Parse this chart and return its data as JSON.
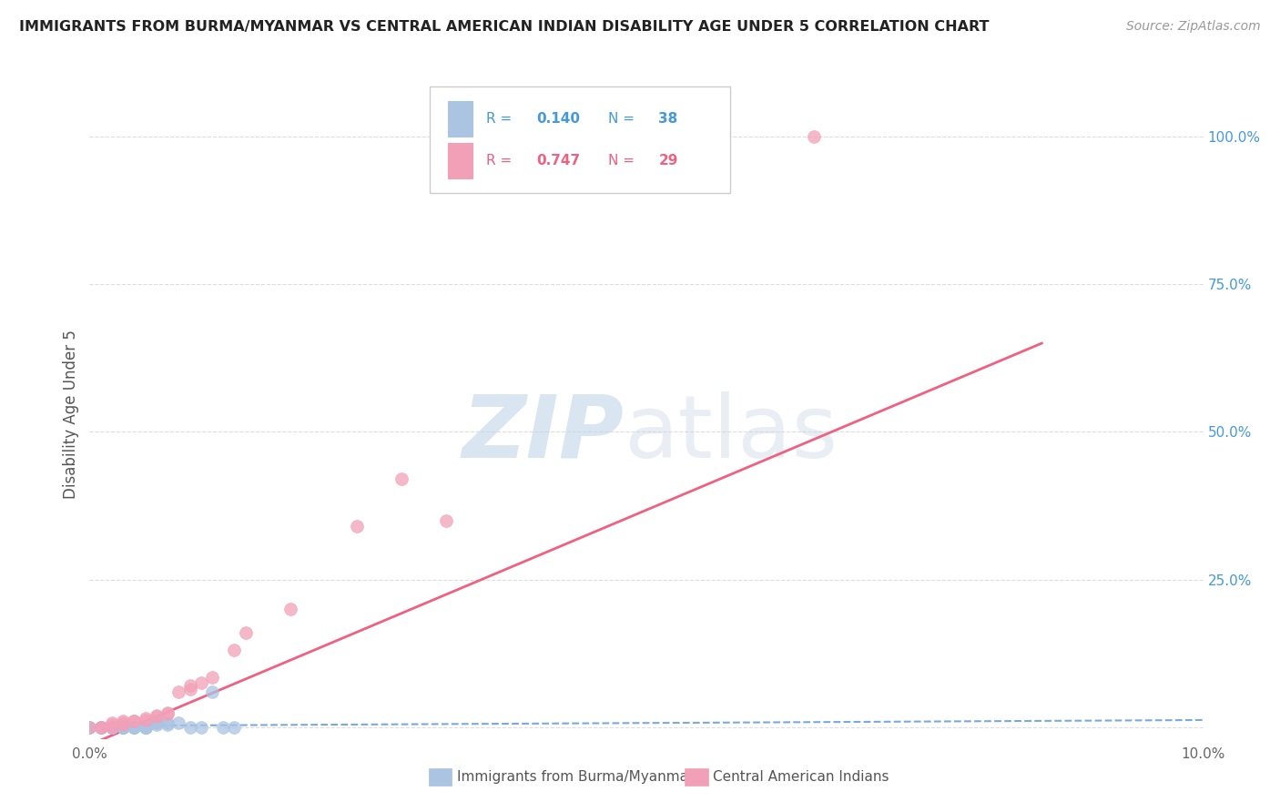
{
  "title": "IMMIGRANTS FROM BURMA/MYANMAR VS CENTRAL AMERICAN INDIAN DISABILITY AGE UNDER 5 CORRELATION CHART",
  "source": "Source: ZipAtlas.com",
  "ylabel": "Disability Age Under 5",
  "ytick_labels": [
    "",
    "25.0%",
    "50.0%",
    "75.0%",
    "100.0%"
  ],
  "ytick_vals": [
    0.0,
    0.25,
    0.5,
    0.75,
    1.0
  ],
  "xmin": 0.0,
  "xmax": 0.1,
  "ymin": -0.02,
  "ymax": 1.08,
  "legend_r1": "R = 0.140",
  "legend_n1": "N = 38",
  "legend_r2": "R = 0.747",
  "legend_n2": "N = 29",
  "legend_label1": "Immigrants from Burma/Myanmar",
  "legend_label2": "Central American Indians",
  "color_blue": "#aac4e2",
  "color_pink": "#f2a0b8",
  "color_blue_text": "#4499dd",
  "color_pink_text": "#f06080",
  "color_line_blue": "#7aaadd",
  "color_line_pink": "#f06080",
  "blue_x": [
    0.0,
    0.0,
    0.001,
    0.001,
    0.001,
    0.002,
    0.002,
    0.002,
    0.002,
    0.002,
    0.003,
    0.003,
    0.003,
    0.003,
    0.003,
    0.003,
    0.004,
    0.004,
    0.004,
    0.004,
    0.004,
    0.005,
    0.005,
    0.005,
    0.005,
    0.005,
    0.006,
    0.006,
    0.006,
    0.006,
    0.007,
    0.007,
    0.008,
    0.009,
    0.01,
    0.011,
    0.012,
    0.013
  ],
  "blue_y": [
    0.0,
    0.0,
    0.0,
    0.0,
    0.0,
    0.0,
    0.0,
    0.0,
    0.0,
    0.0,
    0.0,
    0.0,
    0.0,
    0.0,
    0.0,
    0.0,
    0.0,
    0.0,
    0.0,
    0.0,
    0.0,
    0.0,
    0.0,
    0.0,
    0.0,
    0.0,
    0.005,
    0.007,
    0.008,
    0.01,
    0.005,
    0.008,
    0.008,
    0.0,
    0.0,
    0.06,
    0.0,
    0.0
  ],
  "pink_x": [
    0.0,
    0.001,
    0.001,
    0.002,
    0.002,
    0.002,
    0.003,
    0.003,
    0.003,
    0.004,
    0.004,
    0.005,
    0.005,
    0.006,
    0.006,
    0.007,
    0.007,
    0.008,
    0.009,
    0.009,
    0.01,
    0.011,
    0.013,
    0.014,
    0.018,
    0.024,
    0.028,
    0.032,
    0.065
  ],
  "pink_y": [
    0.0,
    0.0,
    0.0,
    0.0,
    0.005,
    0.008,
    0.005,
    0.008,
    0.01,
    0.01,
    0.01,
    0.012,
    0.015,
    0.018,
    0.02,
    0.022,
    0.025,
    0.06,
    0.065,
    0.07,
    0.075,
    0.085,
    0.13,
    0.16,
    0.2,
    0.34,
    0.42,
    0.35,
    1.0
  ],
  "blue_trend_x": [
    0.0,
    0.1
  ],
  "blue_trend_y": [
    0.002,
    0.012
  ],
  "pink_trend_x": [
    0.0,
    0.0855
  ],
  "pink_trend_y": [
    -0.03,
    0.65
  ],
  "grid_color": "#dddddd",
  "bg_color": "#ffffff",
  "watermark_zip_color": "#c0d4e8",
  "watermark_atlas_color": "#c0d0e4"
}
